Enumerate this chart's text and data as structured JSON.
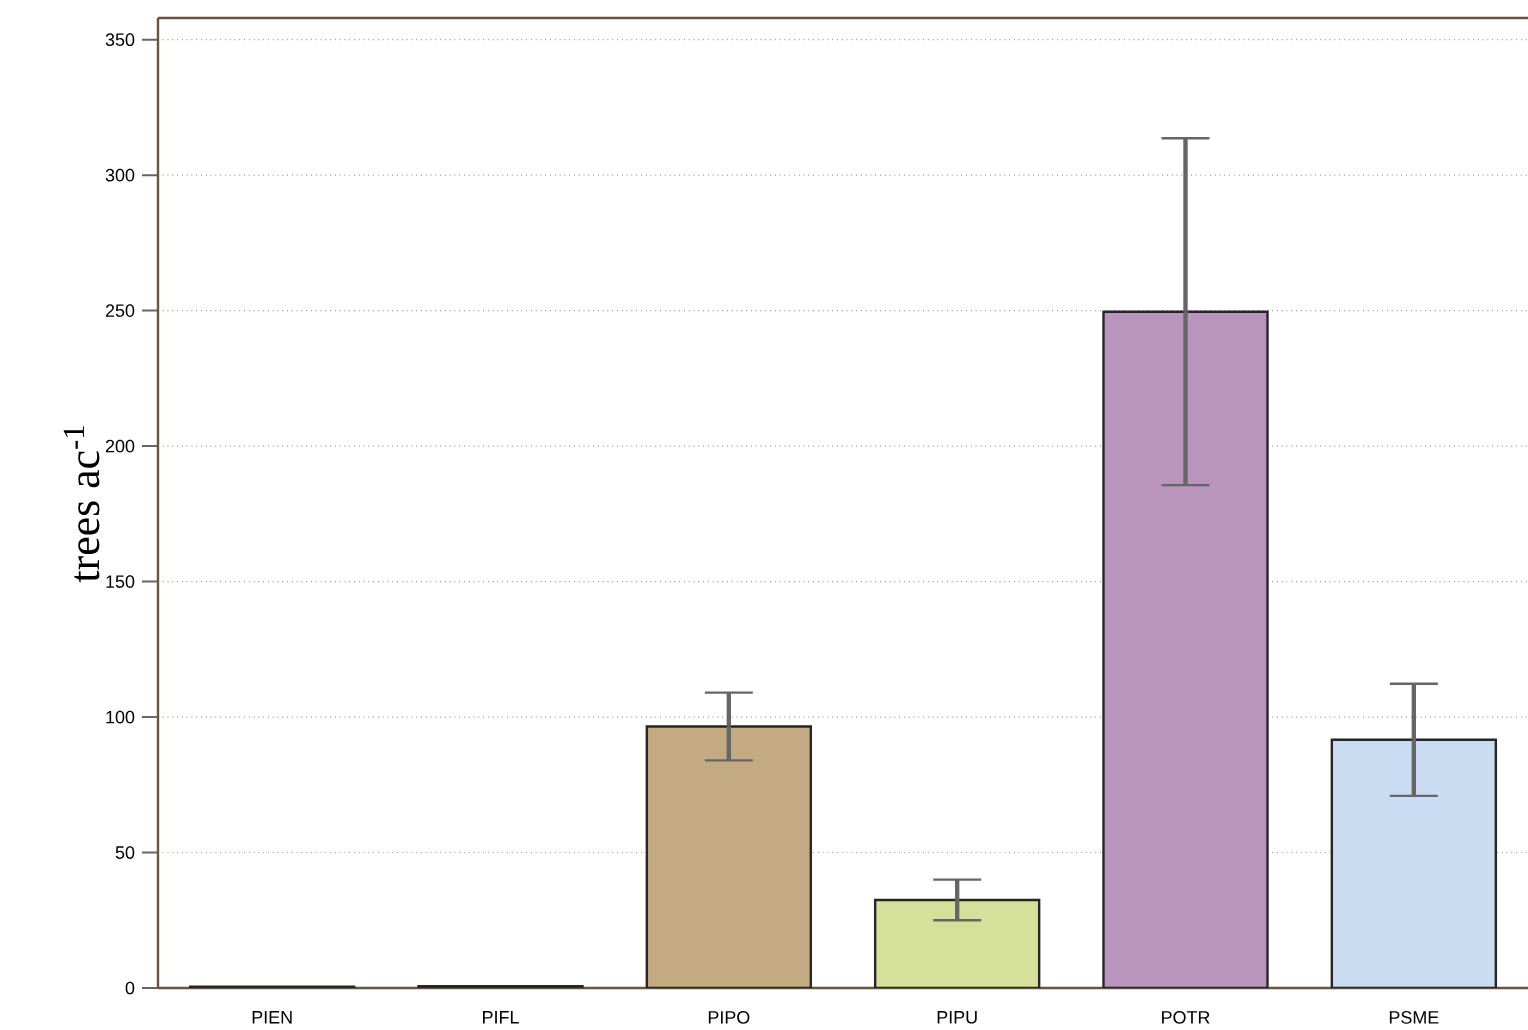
{
  "chart_data": {
    "type": "bar",
    "ylabel": "trees ac$^{-1}$",
    "categories": [
      "PIEN",
      "PIFL",
      "PIPO",
      "PIPU",
      "POTR",
      "PSME"
    ],
    "values": [
      0.5,
      0.7,
      96.5,
      32.5,
      249.6,
      91.6
    ],
    "errors": [
      null,
      null,
      12.5,
      7.5,
      64,
      20.7
    ],
    "colors": [
      "#555555",
      "#555555",
      "#c4aa82",
      "#d5e09a",
      "#b994bd",
      "#c9dcf2"
    ],
    "ylim": [
      0,
      358
    ],
    "yticks": [
      0,
      50,
      100,
      150,
      200,
      250,
      300,
      350
    ],
    "grid": "y"
  }
}
